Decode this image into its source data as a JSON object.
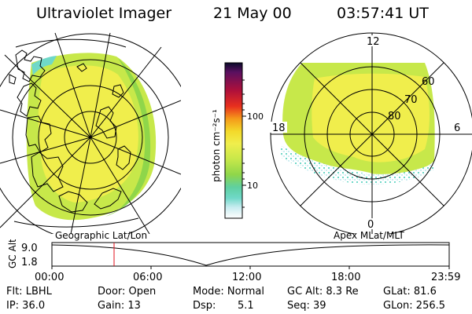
{
  "header": {
    "title": "Ultraviolet Imager",
    "date": "21 May 00",
    "time": "03:57:41 UT"
  },
  "polar_plot": {
    "mlt_labels": [
      "12",
      "18",
      "6",
      "0"
    ],
    "lat_labels": [
      "60",
      "70",
      "80"
    ]
  },
  "colorbar": {
    "unit_label": "photon cm⁻²s⁻¹",
    "ticks": [
      "100",
      "10"
    ]
  },
  "alt_plot": {
    "ylabel": "GC Alt",
    "yticks": [
      "9.0",
      "1.8"
    ],
    "left_caption": "Geographic Lat/Lon",
    "right_caption": "Apex MLat/MLT",
    "xticks": [
      "00:00",
      "06:00",
      "12:00",
      "18:00",
      "23:59"
    ]
  },
  "info": {
    "flt": "Flt: LBHL",
    "ip": "IP: 36.0",
    "door": "Door: Open",
    "gain": "Gain: 13",
    "mode": "Mode: Normal",
    "dsp_label": "Dsp:",
    "dsp_value": "5.1",
    "gc_alt": "GC Alt: 8.3 Re",
    "seq": "Seq: 39",
    "glat": "GLat: 81.6",
    "glon": "GLon: 256.5"
  },
  "colors": {
    "yellow": "#f0ee4c",
    "yellow_green": "#c7e84a",
    "green": "#8fd64a",
    "cyan": "#6fd8c8",
    "light_cyan": "#c9ecf0",
    "marker": "#e0101e"
  }
}
